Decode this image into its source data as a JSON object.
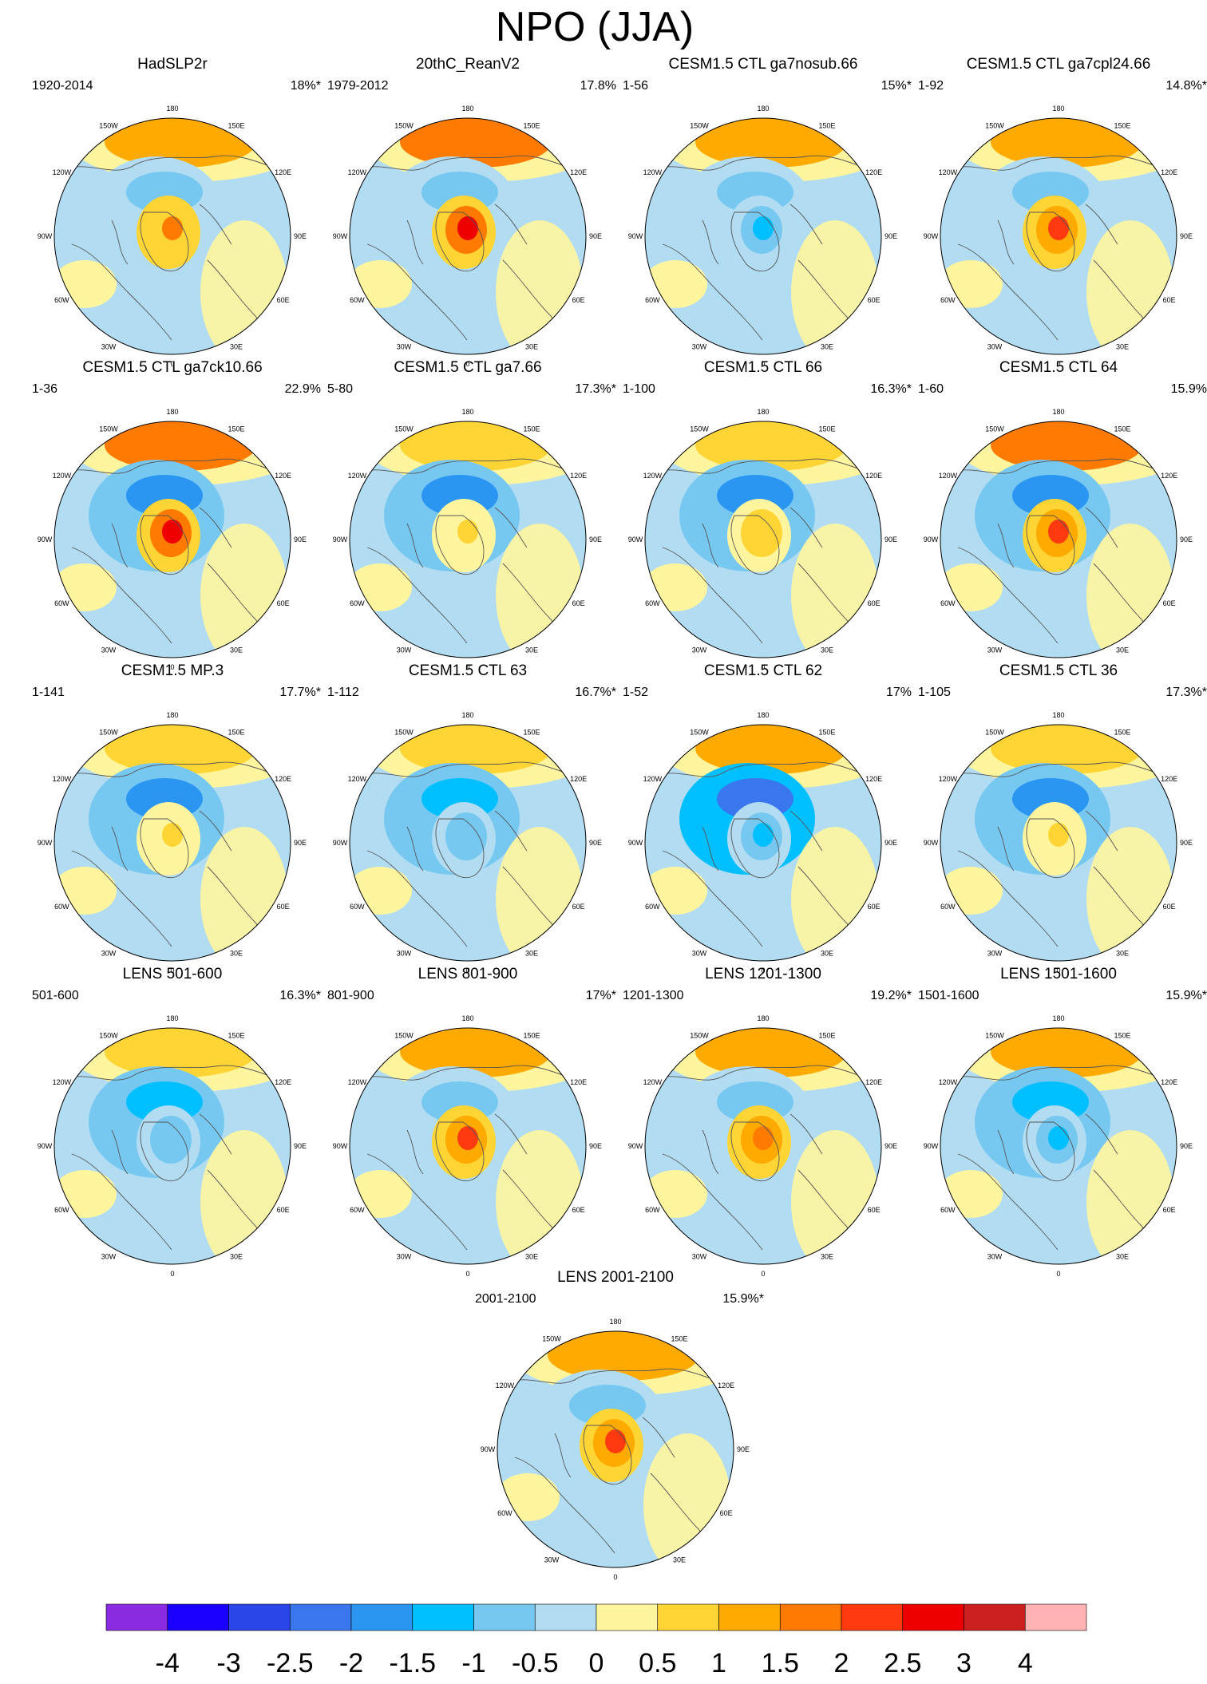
{
  "figure": {
    "title": "NPO (JJA)"
  },
  "longitude_labels": [
    "180",
    "150E",
    "120E",
    "90E",
    "60E",
    "30E",
    "0",
    "30W",
    "60W",
    "90W",
    "120W",
    "150W"
  ],
  "panels": [
    {
      "title": "HadSLP2r",
      "period": "1920-2014",
      "variance": "18%*",
      "center": 1.5,
      "ring": -0.7
    },
    {
      "title": "20thC_ReanV2",
      "period": "1979-2012",
      "variance": "17.8%",
      "center": 2.6,
      "ring": -0.9
    },
    {
      "title": "CESM1.5 CTL ga7nosub.66",
      "period": "1-56",
      "variance": "15%*",
      "center": -1.2,
      "ring": -0.6
    },
    {
      "title": "CESM1.5 CTL ga7cpl24.66",
      "period": "1-92",
      "variance": "14.8%*",
      "center": 2.0,
      "ring": -0.8
    },
    {
      "title": "CESM1.5 CTL ga7ck10.66",
      "period": "1-36",
      "variance": "22.9%",
      "center": 2.7,
      "ring": -1.8
    },
    {
      "title": "CESM1.5 CTL ga7.66",
      "period": "5-80",
      "variance": "17.3%*",
      "center": 0.7,
      "ring": -1.6
    },
    {
      "title": "CESM1.5 CTL 66",
      "period": "1-100",
      "variance": "16.3%*",
      "center": 0.8,
      "ring": -1.7
    },
    {
      "title": "CESM1.5 CTL 64",
      "period": "1-60",
      "variance": "15.9%",
      "center": 2.3,
      "ring": -1.6
    },
    {
      "title": "CESM1.5 MP.3",
      "period": "1-141",
      "variance": "17.7%*",
      "center": 0.6,
      "ring": -1.8
    },
    {
      "title": "CESM1.5 CTL 63",
      "period": "1-112",
      "variance": "16.7%*",
      "center": -0.8,
      "ring": -1.5
    },
    {
      "title": "CESM1.5 CTL 62",
      "period": "1-52",
      "variance": "17%",
      "center": -1.3,
      "ring": -2.2
    },
    {
      "title": "CESM1.5 CTL 36",
      "period": "1-105",
      "variance": "17.3%*",
      "center": 0.7,
      "ring": -1.8
    },
    {
      "title": "LENS 501-600",
      "period": "501-600",
      "variance": "16.3%*",
      "center": -0.9,
      "ring": -1.2
    },
    {
      "title": "LENS 801-900",
      "period": "801-900",
      "variance": "17%*",
      "center": 2.0,
      "ring": -0.6
    },
    {
      "title": "LENS 1201-1300",
      "period": "1201-1300",
      "variance": "19.2%*",
      "center": 1.8,
      "ring": -0.6
    },
    {
      "title": "LENS 1501-1600",
      "period": "1501-1600",
      "variance": "15.9%*",
      "center": -1.4,
      "ring": -1.3
    },
    {
      "title": "LENS 2001-2100",
      "period": "2001-2100",
      "variance": "15.9%*",
      "center": 2.2,
      "ring": -0.6
    }
  ],
  "colorbar": {
    "labels": [
      "-4",
      "-3",
      "-2.5",
      "-2",
      "-1.5",
      "-1",
      "-0.5",
      "0",
      "0.5",
      "1",
      "1.5",
      "2",
      "2.5",
      "3",
      "4"
    ],
    "colors": [
      "#8a2be2",
      "#1a00ff",
      "#2a45e8",
      "#3a76ee",
      "#2a96f2",
      "#00bfff",
      "#77c8f1",
      "#b1dcf1",
      "#fff59e",
      "#ffd535",
      "#ffaa00",
      "#ff7a00",
      "#ff3a10",
      "#ee0000",
      "#cc1f1f",
      "#ffb3b3"
    ]
  }
}
